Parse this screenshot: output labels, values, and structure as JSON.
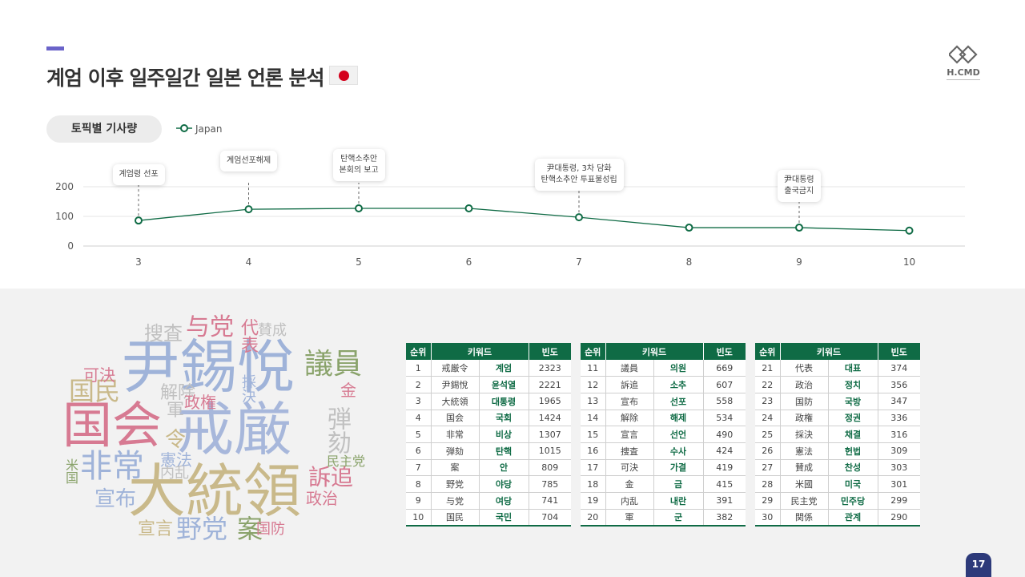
{
  "header": {
    "title": "계엄 이후 일주일간 일본 언론 분석",
    "flag_icon": "japan-flag-icon",
    "flag_color": "#d4001c",
    "logo_text": "H.CMD"
  },
  "topic_pill": "토픽별 기사량",
  "chart_data": {
    "type": "line",
    "x": [
      3,
      4,
      5,
      6,
      7,
      8,
      9,
      10
    ],
    "series": [
      {
        "name": "Japan",
        "color": "#0f6b45",
        "values": [
          86,
          124,
          127,
          127,
          97,
          62,
          62,
          52
        ]
      }
    ],
    "ylim": [
      0,
      200
    ],
    "yticks": [
      0,
      100,
      200
    ],
    "grid": true,
    "legend": "top-left",
    "annotations": [
      {
        "x": 3,
        "text": "계엄령 선포"
      },
      {
        "x": 4,
        "text": "계엄선포해제"
      },
      {
        "x": 5,
        "text": "탄핵소추안\n본회의 보고"
      },
      {
        "x": 7,
        "text": "尹대통령, 3차 담화\n탄핵소추안 투표불성립"
      },
      {
        "x": 9,
        "text": "尹대통령\n출국금지"
      }
    ]
  },
  "wordcloud": [
    {
      "text": "尹錫悅",
      "color": "#9fb3d9"
    },
    {
      "text": "戒厳",
      "color": "#a7b7db"
    },
    {
      "text": "国会",
      "color": "#d77a92"
    },
    {
      "text": "大統領",
      "color": "#c9b98a"
    },
    {
      "text": "非常",
      "color": "#9fb3d9"
    },
    {
      "text": "与党",
      "color": "#d77a92"
    },
    {
      "text": "議員",
      "color": "#8aa36b"
    },
    {
      "text": "弾劾",
      "color": "#c0c0c0"
    },
    {
      "text": "訴追",
      "color": "#d77a92"
    },
    {
      "text": "宣布",
      "color": "#9fb3d9"
    },
    {
      "text": "野党",
      "color": "#9fb3d9"
    },
    {
      "text": "案",
      "color": "#8aa36b"
    },
    {
      "text": "国民",
      "color": "#c9b98a"
    },
    {
      "text": "可決",
      "color": "#d77a92"
    },
    {
      "text": "搜査",
      "color": "#c0c0c0"
    },
    {
      "text": "代表",
      "color": "#d77a92"
    },
    {
      "text": "賛成",
      "color": "#c0c0c0"
    },
    {
      "text": "解除",
      "color": "#c0c0c0"
    },
    {
      "text": "政権",
      "color": "#d77a92"
    },
    {
      "text": "採決",
      "color": "#9fb3d9"
    },
    {
      "text": "軍",
      "color": "#c0c0c0"
    },
    {
      "text": "令",
      "color": "#c9b98a"
    },
    {
      "text": "金",
      "color": "#d77a92"
    },
    {
      "text": "憲法",
      "color": "#9fb3d9"
    },
    {
      "text": "内乱",
      "color": "#c0c0c0"
    },
    {
      "text": "民主党",
      "color": "#8aa36b"
    },
    {
      "text": "米国",
      "color": "#8aa36b"
    },
    {
      "text": "政治",
      "color": "#d77a92"
    },
    {
      "text": "宣言",
      "color": "#c9b98a"
    },
    {
      "text": "国防",
      "color": "#d77a92"
    }
  ],
  "keyword_table": {
    "headers": [
      "순위",
      "키워드",
      "빈도"
    ],
    "rows": [
      [
        "1",
        "戒厳令",
        "계엄",
        "2323"
      ],
      [
        "2",
        "尹錫悅",
        "윤석열",
        "2221"
      ],
      [
        "3",
        "大統領",
        "대통령",
        "1965"
      ],
      [
        "4",
        "国会",
        "국회",
        "1424"
      ],
      [
        "5",
        "非常",
        "비상",
        "1307"
      ],
      [
        "6",
        "弾劾",
        "탄핵",
        "1015"
      ],
      [
        "7",
        "案",
        "안",
        "809"
      ],
      [
        "8",
        "野党",
        "야당",
        "785"
      ],
      [
        "9",
        "与党",
        "여당",
        "741"
      ],
      [
        "10",
        "国民",
        "국민",
        "704"
      ],
      [
        "11",
        "議員",
        "의원",
        "669"
      ],
      [
        "12",
        "訴追",
        "소추",
        "607"
      ],
      [
        "13",
        "宣布",
        "선포",
        "558"
      ],
      [
        "14",
        "解除",
        "해제",
        "534"
      ],
      [
        "15",
        "宣言",
        "선언",
        "490"
      ],
      [
        "16",
        "捜査",
        "수사",
        "424"
      ],
      [
        "17",
        "可決",
        "가결",
        "419"
      ],
      [
        "18",
        "金",
        "금",
        "415"
      ],
      [
        "19",
        "内乱",
        "내란",
        "391"
      ],
      [
        "20",
        "軍",
        "군",
        "382"
      ],
      [
        "21",
        "代表",
        "대표",
        "374"
      ],
      [
        "22",
        "政治",
        "정치",
        "356"
      ],
      [
        "23",
        "国防",
        "국방",
        "347"
      ],
      [
        "24",
        "政権",
        "정권",
        "336"
      ],
      [
        "25",
        "採決",
        "채결",
        "316"
      ],
      [
        "26",
        "憲法",
        "헌법",
        "309"
      ],
      [
        "27",
        "賛成",
        "찬성",
        "303"
      ],
      [
        "28",
        "米國",
        "미국",
        "301"
      ],
      [
        "29",
        "民主党",
        "민주당",
        "299"
      ],
      [
        "30",
        "関係",
        "관계",
        "290"
      ]
    ]
  },
  "page_number": "17"
}
